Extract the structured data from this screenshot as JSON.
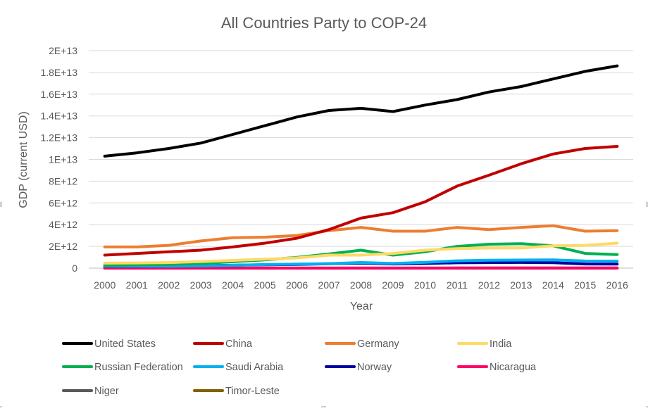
{
  "chart_data": {
    "type": "line",
    "title": "All Countries Party to COP-24",
    "xlabel": "Year",
    "ylabel": "GDP (current USD)",
    "x": [
      "2000",
      "2001",
      "2002",
      "2003",
      "2004",
      "2005",
      "2006",
      "2007",
      "2008",
      "2009",
      "2010",
      "2011",
      "2012",
      "2013",
      "2014",
      "2015",
      "2016"
    ],
    "ylim": [
      0,
      20000000000000.0
    ],
    "yticks": [
      {
        "value": 0,
        "label": "0"
      },
      {
        "value": 2000000000000.0,
        "label": "2E+12"
      },
      {
        "value": 4000000000000.0,
        "label": "4E+12"
      },
      {
        "value": 6000000000000.0,
        "label": "6E+12"
      },
      {
        "value": 8000000000000.0,
        "label": "8E+12"
      },
      {
        "value": 10000000000000.0,
        "label": "1E+13"
      },
      {
        "value": 12000000000000.0,
        "label": "1.2E+13"
      },
      {
        "value": 14000000000000.0,
        "label": "1.4E+13"
      },
      {
        "value": 16000000000000.0,
        "label": "1.6E+13"
      },
      {
        "value": 18000000000000.0,
        "label": "1.8E+13"
      },
      {
        "value": 20000000000000.0,
        "label": "2E+13"
      }
    ],
    "grid": true,
    "legend_position": "bottom",
    "series": [
      {
        "name": "United States",
        "color": "#000000",
        "values": [
          10300000000000.0,
          10600000000000.0,
          11000000000000.0,
          11500000000000.0,
          12300000000000.0,
          13100000000000.0,
          13900000000000.0,
          14500000000000.0,
          14700000000000.0,
          14400000000000.0,
          15000000000000.0,
          15500000000000.0,
          16200000000000.0,
          16700000000000.0,
          17400000000000.0,
          18100000000000.0,
          18600000000000.0
        ]
      },
      {
        "name": "China",
        "color": "#c00000",
        "values": [
          1200000000000.0,
          1350000000000.0,
          1500000000000.0,
          1650000000000.0,
          1950000000000.0,
          2300000000000.0,
          2750000000000.0,
          3550000000000.0,
          4600000000000.0,
          5100000000000.0,
          6100000000000.0,
          7550000000000.0,
          8550000000000.0,
          9600000000000.0,
          10500000000000.0,
          11000000000000.0,
          11200000000000.0
        ]
      },
      {
        "name": "Germany",
        "color": "#ed7d31",
        "values": [
          1950000000000.0,
          1950000000000.0,
          2100000000000.0,
          2500000000000.0,
          2800000000000.0,
          2850000000000.0,
          3000000000000.0,
          3450000000000.0,
          3750000000000.0,
          3400000000000.0,
          3400000000000.0,
          3750000000000.0,
          3550000000000.0,
          3750000000000.0,
          3900000000000.0,
          3400000000000.0,
          3450000000000.0
        ]
      },
      {
        "name": "India",
        "color": "#ffd966",
        "values": [
          460000000000.0,
          480000000000.0,
          510000000000.0,
          600000000000.0,
          710000000000.0,
          820000000000.0,
          940000000000.0,
          1200000000000.0,
          1200000000000.0,
          1350000000000.0,
          1650000000000.0,
          1800000000000.0,
          1850000000000.0,
          1850000000000.0,
          2050000000000.0,
          2100000000000.0,
          2300000000000.0
        ]
      },
      {
        "name": "Russian Federation",
        "color": "#00b050",
        "values": [
          260000000000.0,
          310000000000.0,
          345000000000.0,
          430000000000.0,
          590000000000.0,
          760000000000.0,
          990000000000.0,
          1300000000000.0,
          1650000000000.0,
          1200000000000.0,
          1500000000000.0,
          2000000000000.0,
          2200000000000.0,
          2250000000000.0,
          2050000000000.0,
          1350000000000.0,
          1250000000000.0
        ]
      },
      {
        "name": "Saudi Arabia",
        "color": "#00b0f0",
        "values": [
          190000000000.0,
          185000000000.0,
          190000000000.0,
          215000000000.0,
          260000000000.0,
          330000000000.0,
          375000000000.0,
          415000000000.0,
          520000000000.0,
          430000000000.0,
          530000000000.0,
          670000000000.0,
          730000000000.0,
          745000000000.0,
          755000000000.0,
          655000000000.0,
          645000000000.0
        ]
      },
      {
        "name": "Norway",
        "color": "#0000a0",
        "values": [
          170000000000.0,
          175000000000.0,
          195000000000.0,
          230000000000.0,
          265000000000.0,
          305000000000.0,
          345000000000.0,
          400000000000.0,
          460000000000.0,
          385000000000.0,
          430000000000.0,
          495000000000.0,
          510000000000.0,
          525000000000.0,
          500000000000.0,
          385000000000.0,
          370000000000.0
        ]
      },
      {
        "name": "Nicaragua",
        "color": "#ff0066",
        "values": [
          5000000000.0,
          5000000000.0,
          5000000000.0,
          5000000000.0,
          6000000000.0,
          7000000000.0,
          7000000000.0,
          8000000000.0,
          9000000000.0,
          9000000000.0,
          9000000000.0,
          10000000000.0,
          11000000000.0,
          11000000000.0,
          12000000000.0,
          13000000000.0,
          13000000000.0
        ]
      },
      {
        "name": "Niger",
        "color": "#595959",
        "values": [
          2000000000.0,
          2000000000.0,
          2000000000.0,
          3000000000.0,
          3000000000.0,
          3000000000.0,
          4000000000.0,
          4000000000.0,
          5000000000.0,
          5000000000.0,
          6000000000.0,
          6000000000.0,
          7000000000.0,
          8000000000.0,
          8000000000.0,
          7000000000.0,
          8000000000.0
        ]
      },
      {
        "name": "Timor-Leste",
        "color": "#806000",
        "values": [
          1000000000.0,
          1000000000.0,
          1000000000.0,
          1000000000.0,
          1000000000.0,
          1000000000.0,
          1000000000.0,
          1000000000.0,
          1000000000.0,
          1000000000.0,
          1000000000.0,
          1000000000.0,
          1000000000.0,
          1000000000.0,
          2000000000.0,
          2000000000.0,
          2000000000.0
        ]
      }
    ]
  }
}
